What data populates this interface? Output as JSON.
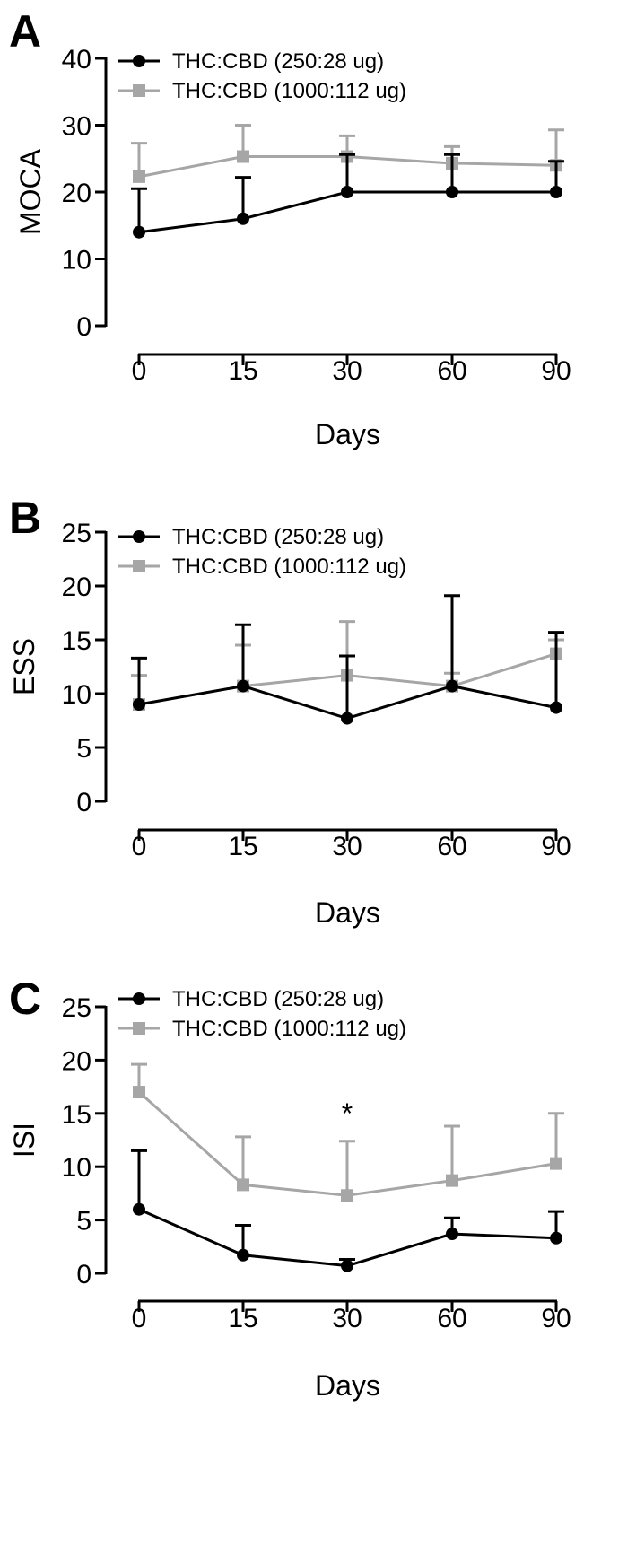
{
  "colors": {
    "series_a": "#000000",
    "series_b": "#a6a6a6"
  },
  "chart_data": [
    {
      "panel": "A",
      "type": "line",
      "xlabel": "Days",
      "ylabel": "MOCA",
      "x": [
        "0",
        "15",
        "30",
        "60",
        "90"
      ],
      "ylim": [
        0,
        40
      ],
      "yticks": [
        "0",
        "10",
        "20",
        "30",
        "40"
      ],
      "legend_placement": "top-left",
      "series": [
        {
          "name": "THC:CBD (250:28 ug)",
          "marker": "circle",
          "values": [
            14,
            16,
            20,
            20,
            20
          ],
          "err": [
            6.5,
            6.2,
            5.6,
            5.6,
            4.6
          ]
        },
        {
          "name": "THC:CBD (1000:112 ug)",
          "marker": "square",
          "values": [
            22.3,
            25.3,
            25.3,
            24.3,
            24
          ],
          "err": [
            5,
            4.7,
            3.1,
            2.5,
            5.3
          ]
        }
      ]
    },
    {
      "panel": "B",
      "type": "line",
      "xlabel": "Days",
      "ylabel": "ESS",
      "x": [
        "0",
        "15",
        "30",
        "60",
        "90"
      ],
      "ylim": [
        0,
        25
      ],
      "yticks": [
        "0",
        "5",
        "10",
        "15",
        "20",
        "25"
      ],
      "legend_placement": "top-left",
      "series": [
        {
          "name": "THC:CBD (250:28 ug)",
          "marker": "circle",
          "values": [
            9,
            10.7,
            7.7,
            10.7,
            8.7
          ],
          "err": [
            4.3,
            5.7,
            5.8,
            8.4,
            7
          ]
        },
        {
          "name": "THC:CBD (1000:112 ug)",
          "marker": "square",
          "values": [
            9,
            10.7,
            11.7,
            10.7,
            13.7
          ],
          "err": [
            2.7,
            3.8,
            5,
            1.2,
            1.3
          ]
        }
      ]
    },
    {
      "panel": "C",
      "type": "line",
      "xlabel": "Days",
      "ylabel": "ISI",
      "x": [
        "0",
        "15",
        "30",
        "60",
        "90"
      ],
      "ylim": [
        0,
        25
      ],
      "yticks": [
        "0",
        "5",
        "10",
        "15",
        "20",
        "25"
      ],
      "legend_placement": "top-left",
      "annotations": [
        {
          "text": "*",
          "x": "30"
        }
      ],
      "series": [
        {
          "name": "THC:CBD (250:28 ug)",
          "marker": "circle",
          "values": [
            6,
            1.7,
            0.7,
            3.7,
            3.3
          ],
          "err": [
            5.5,
            2.8,
            0.6,
            1.5,
            2.5
          ]
        },
        {
          "name": "THC:CBD (1000:112 ug)",
          "marker": "square",
          "values": [
            17,
            8.3,
            7.3,
            8.7,
            10.3
          ],
          "err": [
            2.6,
            4.5,
            5.1,
            5.1,
            4.7
          ]
        }
      ]
    }
  ]
}
